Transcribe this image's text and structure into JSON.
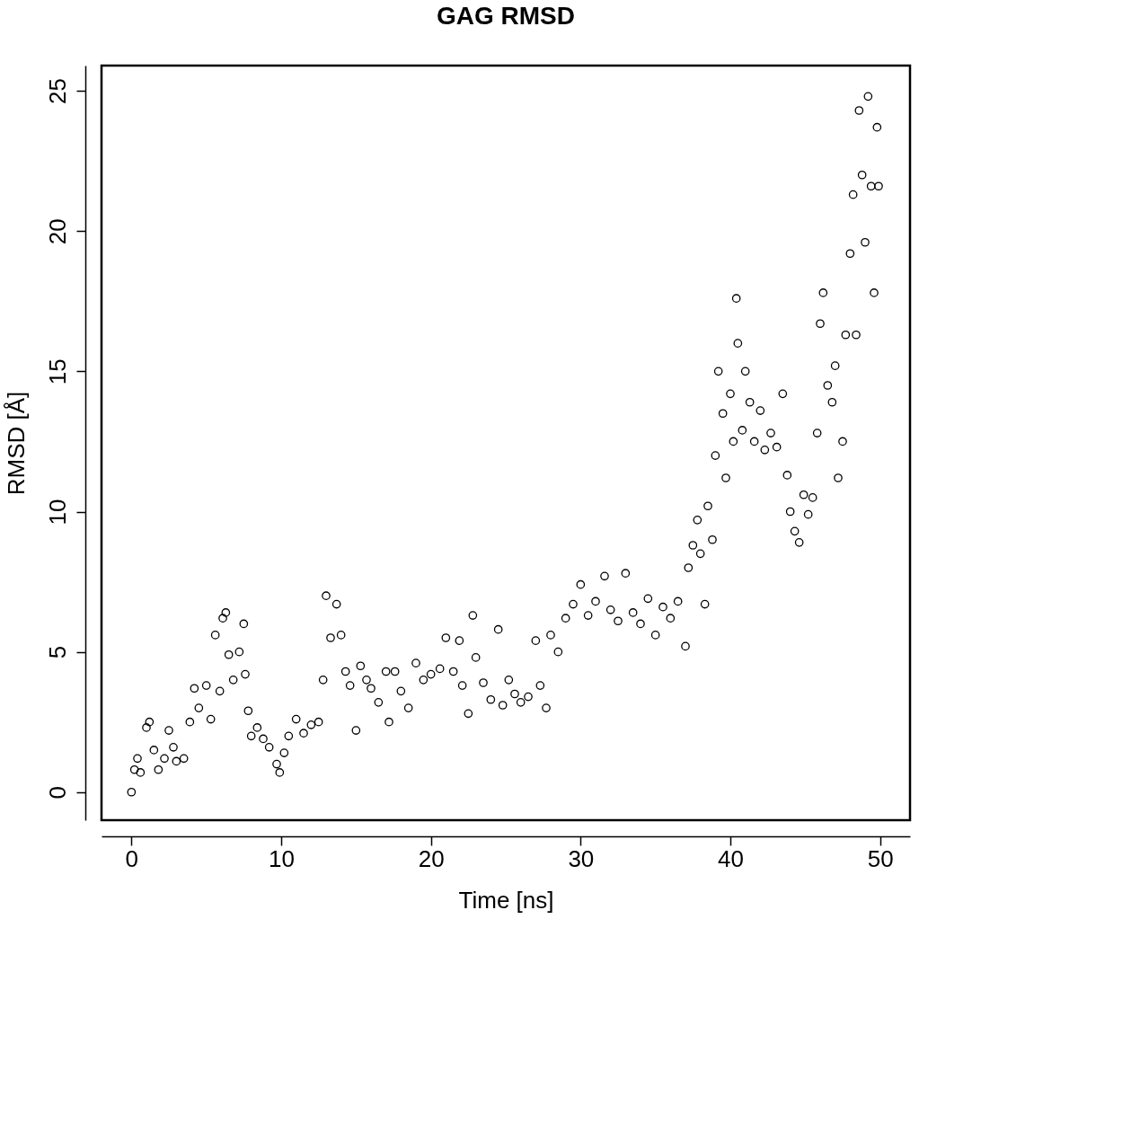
{
  "chart_data": {
    "type": "scatter",
    "title": "GAG RMSD",
    "xlabel": "Time [ns]",
    "ylabel": "RMSD [Å]",
    "marker": "circle",
    "grid": false,
    "legend": false,
    "xlim": [
      -2,
      52
    ],
    "ylim": [
      -1,
      25.9
    ],
    "xticks": [
      0,
      10,
      20,
      30,
      40,
      50
    ],
    "yticks": [
      0,
      5,
      10,
      15,
      20,
      25
    ],
    "series": [
      {
        "color": "#000000",
        "x": [
          0,
          0.2,
          0.4,
          0.6,
          1,
          1.2,
          1.5,
          1.8,
          2.2,
          2.5,
          2.8,
          3,
          3.5,
          3.9,
          4.2,
          4.5,
          5,
          5.3,
          5.6,
          5.9,
          6.1,
          6.3,
          6.5,
          6.8,
          7.2,
          7.5,
          7.6,
          7.8,
          8,
          8.4,
          8.8,
          9.2,
          9.7,
          9.9,
          10.2,
          10.5,
          11,
          11.5,
          12,
          12.5,
          12.8,
          13,
          13.3,
          13.7,
          14,
          14.3,
          14.6,
          15,
          15.3,
          15.7,
          16,
          16.5,
          17,
          17.2,
          17.6,
          18,
          18.5,
          19,
          19.5,
          20,
          20.6,
          21,
          21.5,
          21.9,
          22.1,
          22.5,
          22.8,
          23,
          23.5,
          24,
          24.5,
          24.8,
          25.2,
          25.6,
          26,
          26.5,
          27,
          27.3,
          27.7,
          28,
          28.5,
          29,
          29.5,
          30,
          30.5,
          31,
          31.6,
          32,
          32.5,
          33,
          33.5,
          34,
          34.5,
          35,
          35.5,
          36,
          36.5,
          37,
          37.2,
          37.5,
          37.8,
          38,
          38.3,
          38.5,
          38.8,
          39,
          39.2,
          39.5,
          39.7,
          40,
          40.2,
          40.4,
          40.5,
          40.8,
          41,
          41.3,
          41.6,
          42,
          42.3,
          42.7,
          43.1,
          43.5,
          43.8,
          44,
          44.3,
          44.6,
          44.9,
          45.2,
          45.5,
          45.8,
          46,
          46.2,
          46.5,
          46.8,
          47,
          47.2,
          47.5,
          47.7,
          48,
          48.2,
          48.4,
          48.6,
          48.8,
          49,
          49.2,
          49.4,
          49.6,
          49.8,
          49.9
        ],
        "values": [
          0,
          0.8,
          1.2,
          0.7,
          2.3,
          2.5,
          1.5,
          0.8,
          1.2,
          2.2,
          1.6,
          1.1,
          1.2,
          2.5,
          3.7,
          3.0,
          3.8,
          2.6,
          5.6,
          3.6,
          6.2,
          6.4,
          4.9,
          4.0,
          5.0,
          6.0,
          4.2,
          2.9,
          2.0,
          2.3,
          1.9,
          1.6,
          1.0,
          0.7,
          1.4,
          2.0,
          2.6,
          2.1,
          2.4,
          2.5,
          4.0,
          7.0,
          5.5,
          6.7,
          5.6,
          4.3,
          3.8,
          2.2,
          4.5,
          4.0,
          3.7,
          3.2,
          4.3,
          2.5,
          4.3,
          3.6,
          3.0,
          4.6,
          4.0,
          4.2,
          4.4,
          5.5,
          4.3,
          5.4,
          3.8,
          2.8,
          6.3,
          4.8,
          3.9,
          3.3,
          5.8,
          3.1,
          4.0,
          3.5,
          3.2,
          3.4,
          5.4,
          3.8,
          3.0,
          5.6,
          5.0,
          6.2,
          6.7,
          7.4,
          6.3,
          6.8,
          7.7,
          6.5,
          6.1,
          7.8,
          6.4,
          6.0,
          6.9,
          5.6,
          6.6,
          6.2,
          6.8,
          5.2,
          8.0,
          8.8,
          9.7,
          8.5,
          6.7,
          10.2,
          9.0,
          12.0,
          15.0,
          13.5,
          11.2,
          14.2,
          12.5,
          17.6,
          16.0,
          12.9,
          15.0,
          13.9,
          12.5,
          13.6,
          12.2,
          12.8,
          12.3,
          14.2,
          11.3,
          10.0,
          9.3,
          8.9,
          10.6,
          9.9,
          10.5,
          12.8,
          16.7,
          17.8,
          14.5,
          13.9,
          15.2,
          11.2,
          12.5,
          16.3,
          19.2,
          21.3,
          16.3,
          24.3,
          22.0,
          19.6,
          24.8,
          21.6,
          17.8,
          23.7,
          21.6
        ]
      }
    ]
  }
}
